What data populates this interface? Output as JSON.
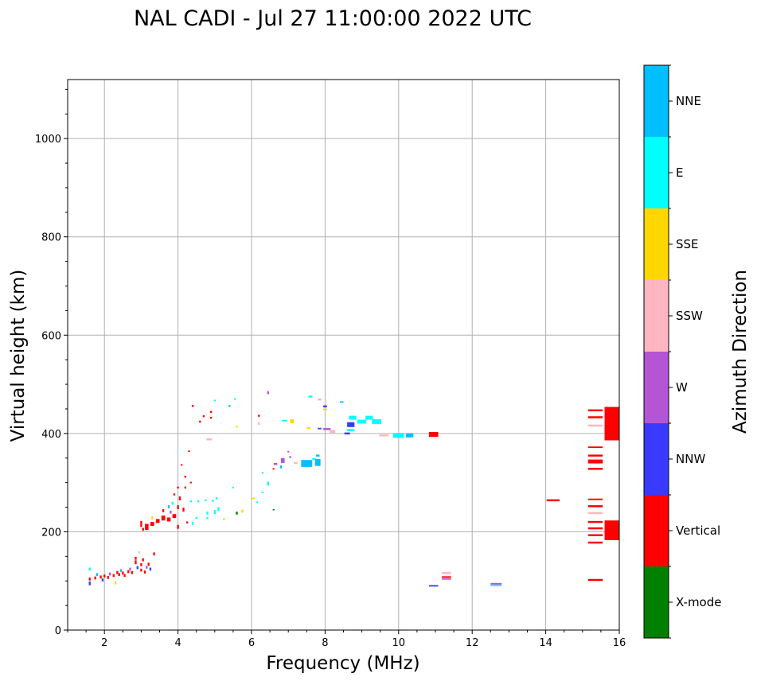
{
  "chart_data": {
    "type": "scatter",
    "title": "NAL CADI - Jul 27 11:00:00 2022 UTC",
    "xlabel": "Frequency (MHz)",
    "ylabel": "Virtual height (km)",
    "xlim": [
      1,
      16
    ],
    "ylim": [
      0,
      1120
    ],
    "xticks": [
      2,
      4,
      6,
      8,
      10,
      12,
      14,
      16
    ],
    "yticks": [
      0,
      200,
      400,
      600,
      800,
      1000
    ],
    "xtick_labels": [
      "2",
      "4",
      "6",
      "8",
      "10",
      "12",
      "14",
      "16"
    ],
    "ytick_labels": [
      "0",
      "200",
      "400",
      "600",
      "800",
      "1000"
    ],
    "grid": true,
    "colorbar": {
      "title": "Azimuth Direction",
      "categories": [
        {
          "name": "X-mode",
          "label": "X-mode",
          "color": "#008000"
        },
        {
          "name": "Vertical",
          "label": "Vertical",
          "color": "#ff0000"
        },
        {
          "name": "NNW",
          "label": "NNW",
          "color": "#3a3aff"
        },
        {
          "name": "W",
          "label": "W",
          "color": "#b455d5"
        },
        {
          "name": "SSW",
          "label": "SSW",
          "color": "#ffb6c1"
        },
        {
          "name": "SSE",
          "label": "SSE",
          "color": "#ffd700"
        },
        {
          "name": "E",
          "label": "E",
          "color": "#00ffff"
        },
        {
          "name": "NNE",
          "label": "NNE",
          "color": "#00bfff"
        }
      ]
    },
    "points": [
      {
        "f": 1.6,
        "h": 104,
        "df": 0.05,
        "dh": 6,
        "c": "Vertical"
      },
      {
        "f": 1.6,
        "h": 95,
        "df": 0.05,
        "dh": 8,
        "c": "NNW"
      },
      {
        "f": 1.6,
        "h": 124,
        "df": 0.05,
        "dh": 6,
        "c": "E"
      },
      {
        "f": 1.75,
        "h": 106,
        "df": 0.05,
        "dh": 6,
        "c": "Vertical"
      },
      {
        "f": 1.8,
        "h": 113,
        "df": 0.05,
        "dh": 6,
        "c": "NNE"
      },
      {
        "f": 1.9,
        "h": 108,
        "df": 0.05,
        "dh": 6,
        "c": "Vertical"
      },
      {
        "f": 1.95,
        "h": 102,
        "df": 0.05,
        "dh": 6,
        "c": "NNW"
      },
      {
        "f": 2.0,
        "h": 110,
        "df": 0.05,
        "dh": 6,
        "c": "Vertical"
      },
      {
        "f": 2.1,
        "h": 107,
        "df": 0.05,
        "dh": 6,
        "c": "Vertical"
      },
      {
        "f": 2.15,
        "h": 114,
        "df": 0.05,
        "dh": 6,
        "c": "W"
      },
      {
        "f": 2.25,
        "h": 111,
        "df": 0.05,
        "dh": 6,
        "c": "Vertical"
      },
      {
        "f": 2.3,
        "h": 96,
        "df": 0.05,
        "dh": 6,
        "c": "SSE"
      },
      {
        "f": 2.35,
        "h": 117,
        "df": 0.05,
        "dh": 6,
        "c": "Vertical"
      },
      {
        "f": 2.4,
        "h": 113,
        "df": 0.05,
        "dh": 6,
        "c": "Vertical"
      },
      {
        "f": 2.45,
        "h": 121,
        "df": 0.05,
        "dh": 6,
        "c": "NNE"
      },
      {
        "f": 2.5,
        "h": 116,
        "df": 0.05,
        "dh": 6,
        "c": "Vertical"
      },
      {
        "f": 2.55,
        "h": 111,
        "df": 0.05,
        "dh": 6,
        "c": "Vertical"
      },
      {
        "f": 2.65,
        "h": 119,
        "df": 0.05,
        "dh": 6,
        "c": "Vertical"
      },
      {
        "f": 2.7,
        "h": 124,
        "df": 0.05,
        "dh": 6,
        "c": "W"
      },
      {
        "f": 2.75,
        "h": 117,
        "df": 0.05,
        "dh": 6,
        "c": "Vertical"
      },
      {
        "f": 2.85,
        "h": 138,
        "df": 0.05,
        "dh": 8,
        "c": "Vertical"
      },
      {
        "f": 2.85,
        "h": 146,
        "df": 0.05,
        "dh": 6,
        "c": "Vertical"
      },
      {
        "f": 2.9,
        "h": 127,
        "df": 0.05,
        "dh": 6,
        "c": "NNW"
      },
      {
        "f": 2.95,
        "h": 158,
        "df": 0.05,
        "dh": 4,
        "c": "SSW"
      },
      {
        "f": 3.0,
        "h": 133,
        "df": 0.05,
        "dh": 6,
        "c": "Vertical"
      },
      {
        "f": 3.0,
        "h": 122,
        "df": 0.05,
        "dh": 6,
        "c": "Vertical"
      },
      {
        "f": 3.05,
        "h": 143,
        "df": 0.05,
        "dh": 6,
        "c": "Vertical"
      },
      {
        "f": 3.1,
        "h": 118,
        "df": 0.05,
        "dh": 6,
        "c": "Vertical"
      },
      {
        "f": 3.15,
        "h": 128,
        "df": 0.05,
        "dh": 6,
        "c": "W"
      },
      {
        "f": 3.2,
        "h": 134,
        "df": 0.05,
        "dh": 6,
        "c": "Vertical"
      },
      {
        "f": 3.25,
        "h": 124,
        "df": 0.05,
        "dh": 6,
        "c": "NNW"
      },
      {
        "f": 3.35,
        "h": 155,
        "df": 0.05,
        "dh": 6,
        "c": "Vertical"
      },
      {
        "f": 3.0,
        "h": 216,
        "df": 0.05,
        "dh": 12,
        "c": "Vertical"
      },
      {
        "f": 3.05,
        "h": 205,
        "df": 0.05,
        "dh": 6,
        "c": "Vertical"
      },
      {
        "f": 3.15,
        "h": 210,
        "df": 0.1,
        "dh": 12,
        "c": "Vertical"
      },
      {
        "f": 3.3,
        "h": 228,
        "df": 0.05,
        "dh": 6,
        "c": "SSE"
      },
      {
        "f": 3.3,
        "h": 216,
        "df": 0.1,
        "dh": 8,
        "c": "Vertical"
      },
      {
        "f": 3.45,
        "h": 222,
        "df": 0.1,
        "dh": 8,
        "c": "Vertical"
      },
      {
        "f": 3.6,
        "h": 228,
        "df": 0.1,
        "dh": 10,
        "c": "Vertical"
      },
      {
        "f": 3.6,
        "h": 243,
        "df": 0.05,
        "dh": 6,
        "c": "Vertical"
      },
      {
        "f": 3.75,
        "h": 225,
        "df": 0.1,
        "dh": 8,
        "c": "Vertical"
      },
      {
        "f": 3.75,
        "h": 251,
        "df": 0.05,
        "dh": 6,
        "c": "NNE"
      },
      {
        "f": 3.8,
        "h": 240,
        "df": 0.05,
        "dh": 6,
        "c": "W"
      },
      {
        "f": 3.85,
        "h": 258,
        "df": 0.05,
        "dh": 6,
        "c": "E"
      },
      {
        "f": 3.9,
        "h": 232,
        "df": 0.1,
        "dh": 8,
        "c": "Vertical"
      },
      {
        "f": 3.9,
        "h": 276,
        "df": 0.05,
        "dh": 4,
        "c": "Vertical"
      },
      {
        "f": 4.0,
        "h": 250,
        "df": 0.05,
        "dh": 8,
        "c": "Vertical"
      },
      {
        "f": 4.0,
        "h": 290,
        "df": 0.05,
        "dh": 4,
        "c": "Vertical"
      },
      {
        "f": 4.0,
        "h": 210,
        "df": 0.05,
        "dh": 8,
        "c": "Vertical"
      },
      {
        "f": 4.05,
        "h": 268,
        "df": 0.05,
        "dh": 8,
        "c": "Vertical"
      },
      {
        "f": 4.1,
        "h": 336,
        "df": 0.05,
        "dh": 3,
        "c": "Vertical"
      },
      {
        "f": 4.15,
        "h": 245,
        "df": 0.05,
        "dh": 8,
        "c": "Vertical"
      },
      {
        "f": 4.2,
        "h": 312,
        "df": 0.05,
        "dh": 4,
        "c": "Vertical"
      },
      {
        "f": 4.2,
        "h": 290,
        "df": 0.05,
        "dh": 4,
        "c": "Vertical"
      },
      {
        "f": 4.25,
        "h": 219,
        "df": 0.05,
        "dh": 4,
        "c": "Vertical"
      },
      {
        "f": 4.3,
        "h": 364,
        "df": 0.05,
        "dh": 3,
        "c": "Vertical"
      },
      {
        "f": 4.35,
        "h": 300,
        "df": 0.05,
        "dh": 3,
        "c": "Vertical"
      },
      {
        "f": 4.35,
        "h": 262,
        "df": 0.05,
        "dh": 4,
        "c": "E"
      },
      {
        "f": 4.4,
        "h": 217,
        "df": 0.05,
        "dh": 6,
        "c": "E"
      },
      {
        "f": 4.4,
        "h": 456,
        "df": 0.05,
        "dh": 4,
        "c": "Vertical"
      },
      {
        "f": 4.5,
        "h": 228,
        "df": 0.05,
        "dh": 4,
        "c": "E"
      },
      {
        "f": 4.55,
        "h": 262,
        "df": 0.05,
        "dh": 4,
        "c": "E"
      },
      {
        "f": 4.6,
        "h": 424,
        "df": 0.05,
        "dh": 4,
        "c": "Vertical"
      },
      {
        "f": 4.7,
        "h": 435,
        "df": 0.05,
        "dh": 4,
        "c": "Vertical"
      },
      {
        "f": 4.75,
        "h": 264,
        "df": 0.05,
        "dh": 4,
        "c": "E"
      },
      {
        "f": 4.8,
        "h": 238,
        "df": 0.05,
        "dh": 6,
        "c": "E"
      },
      {
        "f": 4.8,
        "h": 228,
        "df": 0.05,
        "dh": 4,
        "c": "E"
      },
      {
        "f": 4.85,
        "h": 388,
        "df": 0.15,
        "dh": 4,
        "c": "SSW"
      },
      {
        "f": 4.9,
        "h": 444,
        "df": 0.05,
        "dh": 4,
        "c": "Vertical"
      },
      {
        "f": 4.9,
        "h": 432,
        "df": 0.05,
        "dh": 4,
        "c": "Vertical"
      },
      {
        "f": 4.95,
        "h": 263,
        "df": 0.05,
        "dh": 4,
        "c": "E"
      },
      {
        "f": 5.0,
        "h": 467,
        "df": 0.05,
        "dh": 3,
        "c": "E"
      },
      {
        "f": 5.0,
        "h": 240,
        "df": 0.05,
        "dh": 8,
        "c": "E"
      },
      {
        "f": 5.05,
        "h": 268,
        "df": 0.05,
        "dh": 4,
        "c": "E"
      },
      {
        "f": 5.1,
        "h": 246,
        "df": 0.05,
        "dh": 8,
        "c": "E"
      },
      {
        "f": 5.25,
        "h": 226,
        "df": 0.05,
        "dh": 4,
        "c": "SSE"
      },
      {
        "f": 5.4,
        "h": 456,
        "df": 0.05,
        "dh": 4,
        "c": "NNE"
      },
      {
        "f": 5.5,
        "h": 290,
        "df": 0.05,
        "dh": 3,
        "c": "E"
      },
      {
        "f": 5.55,
        "h": 470,
        "df": 0.05,
        "dh": 3,
        "c": "E"
      },
      {
        "f": 5.6,
        "h": 414,
        "df": 0.05,
        "dh": 4,
        "c": "SSE"
      },
      {
        "f": 5.6,
        "h": 238,
        "df": 0.05,
        "dh": 6,
        "c": "X-mode"
      },
      {
        "f": 5.75,
        "h": 242,
        "df": 0.05,
        "dh": 6,
        "c": "SSE"
      },
      {
        "f": 6.05,
        "h": 268,
        "df": 0.1,
        "dh": 3,
        "c": "SSE"
      },
      {
        "f": 6.15,
        "h": 260,
        "df": 0.05,
        "dh": 3,
        "c": "E"
      },
      {
        "f": 6.2,
        "h": 436,
        "df": 0.05,
        "dh": 4,
        "c": "Vertical"
      },
      {
        "f": 6.2,
        "h": 420,
        "df": 0.05,
        "dh": 6,
        "c": "SSW"
      },
      {
        "f": 6.3,
        "h": 280,
        "df": 0.05,
        "dh": 3,
        "c": "E"
      },
      {
        "f": 6.3,
        "h": 320,
        "df": 0.05,
        "dh": 3,
        "c": "E"
      },
      {
        "f": 6.45,
        "h": 298,
        "df": 0.05,
        "dh": 8,
        "c": "E"
      },
      {
        "f": 6.45,
        "h": 483,
        "df": 0.05,
        "dh": 6,
        "c": "W"
      },
      {
        "f": 6.6,
        "h": 245,
        "df": 0.05,
        "dh": 2,
        "c": "X-mode"
      },
      {
        "f": 6.6,
        "h": 328,
        "df": 0.05,
        "dh": 3,
        "c": "Vertical"
      },
      {
        "f": 6.65,
        "h": 338,
        "df": 0.1,
        "dh": 4,
        "c": "W"
      },
      {
        "f": 6.8,
        "h": 332,
        "df": 0.05,
        "dh": 6,
        "c": "NNE"
      },
      {
        "f": 6.85,
        "h": 345,
        "df": 0.1,
        "dh": 10,
        "c": "W"
      },
      {
        "f": 6.9,
        "h": 426,
        "df": 0.15,
        "dh": 3,
        "c": "E"
      },
      {
        "f": 7.0,
        "h": 363,
        "df": 0.05,
        "dh": 3,
        "c": "W"
      },
      {
        "f": 7.05,
        "h": 352,
        "df": 0.05,
        "dh": 4,
        "c": "W"
      },
      {
        "f": 7.1,
        "h": 425,
        "df": 0.1,
        "dh": 8,
        "c": "SSE"
      },
      {
        "f": 7.2,
        "h": 340,
        "df": 0.1,
        "dh": 4,
        "c": "SSW"
      },
      {
        "f": 7.5,
        "h": 339,
        "df": 0.3,
        "dh": 14,
        "c": "NNE"
      },
      {
        "f": 7.55,
        "h": 411,
        "df": 0.1,
        "dh": 3,
        "c": "SSE"
      },
      {
        "f": 7.6,
        "h": 475,
        "df": 0.1,
        "dh": 4,
        "c": "E"
      },
      {
        "f": 7.7,
        "h": 348,
        "df": 0.1,
        "dh": 4,
        "c": "E"
      },
      {
        "f": 7.8,
        "h": 341,
        "df": 0.15,
        "dh": 14,
        "c": "NNE"
      },
      {
        "f": 7.8,
        "h": 355,
        "df": 0.1,
        "dh": 4,
        "c": "NNE"
      },
      {
        "f": 7.85,
        "h": 410,
        "df": 0.1,
        "dh": 3,
        "c": "NNW"
      },
      {
        "f": 7.85,
        "h": 469,
        "df": 0.1,
        "dh": 4,
        "c": "SSW"
      },
      {
        "f": 8.0,
        "h": 455,
        "df": 0.1,
        "dh": 4,
        "c": "NNW"
      },
      {
        "f": 8.0,
        "h": 449,
        "df": 0.1,
        "dh": 3,
        "c": "SSE"
      },
      {
        "f": 8.05,
        "h": 409,
        "df": 0.2,
        "dh": 4,
        "c": "W"
      },
      {
        "f": 8.2,
        "h": 404,
        "df": 0.15,
        "dh": 6,
        "c": "SSW"
      },
      {
        "f": 8.45,
        "h": 464,
        "df": 0.1,
        "dh": 3,
        "c": "NNE"
      },
      {
        "f": 8.6,
        "h": 400,
        "df": 0.15,
        "dh": 4,
        "c": "NNW"
      },
      {
        "f": 8.7,
        "h": 418,
        "df": 0.2,
        "dh": 10,
        "c": "NNW"
      },
      {
        "f": 8.75,
        "h": 432,
        "df": 0.2,
        "dh": 8,
        "c": "E"
      },
      {
        "f": 8.7,
        "h": 407,
        "df": 0.2,
        "dh": 4,
        "c": "E"
      },
      {
        "f": 9.0,
        "h": 424,
        "df": 0.25,
        "dh": 8,
        "c": "E"
      },
      {
        "f": 9.2,
        "h": 432,
        "df": 0.2,
        "dh": 8,
        "c": "E"
      },
      {
        "f": 9.4,
        "h": 424,
        "df": 0.25,
        "dh": 10,
        "c": "E"
      },
      {
        "f": 9.6,
        "h": 396,
        "df": 0.25,
        "dh": 4,
        "c": "SSW"
      },
      {
        "f": 10.0,
        "h": 396,
        "df": 0.3,
        "dh": 10,
        "c": "E"
      },
      {
        "f": 10.3,
        "h": 396,
        "df": 0.2,
        "dh": 8,
        "c": "NNE"
      },
      {
        "f": 10.95,
        "h": 398,
        "df": 0.25,
        "dh": 10,
        "c": "Vertical"
      },
      {
        "f": 10.95,
        "h": 90,
        "df": 0.25,
        "dh": 3,
        "c": "NNW"
      },
      {
        "f": 11.3,
        "h": 116,
        "df": 0.25,
        "dh": 4,
        "c": "SSW"
      },
      {
        "f": 11.3,
        "h": 108,
        "df": 0.25,
        "dh": 3,
        "c": "Vertical"
      },
      {
        "f": 11.3,
        "h": 104,
        "df": 0.25,
        "dh": 3,
        "c": "W"
      },
      {
        "f": 12.65,
        "h": 94,
        "df": 0.3,
        "dh": 3,
        "c": "W"
      },
      {
        "f": 12.65,
        "h": 91,
        "df": 0.3,
        "dh": 3,
        "c": "E"
      },
      {
        "f": 14.2,
        "h": 264,
        "df": 0.35,
        "dh": 4,
        "c": "Vertical"
      },
      {
        "f": 15.35,
        "h": 447,
        "df": 0.4,
        "dh": 4,
        "c": "Vertical"
      },
      {
        "f": 15.35,
        "h": 433,
        "df": 0.4,
        "dh": 4,
        "c": "Vertical"
      },
      {
        "f": 15.35,
        "h": 416,
        "df": 0.4,
        "dh": 4,
        "c": "SSW"
      },
      {
        "f": 15.35,
        "h": 372,
        "df": 0.4,
        "dh": 3,
        "c": "Vertical"
      },
      {
        "f": 15.35,
        "h": 355,
        "df": 0.4,
        "dh": 4,
        "c": "Vertical"
      },
      {
        "f": 15.35,
        "h": 343,
        "df": 0.4,
        "dh": 8,
        "c": "Vertical"
      },
      {
        "f": 15.35,
        "h": 328,
        "df": 0.4,
        "dh": 4,
        "c": "Vertical"
      },
      {
        "f": 15.35,
        "h": 266,
        "df": 0.4,
        "dh": 3,
        "c": "Vertical"
      },
      {
        "f": 15.35,
        "h": 252,
        "df": 0.4,
        "dh": 4,
        "c": "Vertical"
      },
      {
        "f": 15.35,
        "h": 238,
        "df": 0.4,
        "dh": 4,
        "c": "SSW"
      },
      {
        "f": 15.35,
        "h": 220,
        "df": 0.4,
        "dh": 4,
        "c": "Vertical"
      },
      {
        "f": 15.35,
        "h": 207,
        "df": 0.4,
        "dh": 4,
        "c": "Vertical"
      },
      {
        "f": 15.35,
        "h": 193,
        "df": 0.4,
        "dh": 4,
        "c": "Vertical"
      },
      {
        "f": 15.35,
        "h": 178,
        "df": 0.4,
        "dh": 4,
        "c": "Vertical"
      },
      {
        "f": 15.35,
        "h": 102,
        "df": 0.4,
        "dh": 4,
        "c": "Vertical"
      },
      {
        "f": 15.8,
        "h": 420,
        "df": 0.4,
        "dh": 68,
        "c": "Vertical"
      },
      {
        "f": 15.8,
        "h": 203,
        "df": 0.4,
        "dh": 40,
        "c": "Vertical"
      }
    ]
  }
}
